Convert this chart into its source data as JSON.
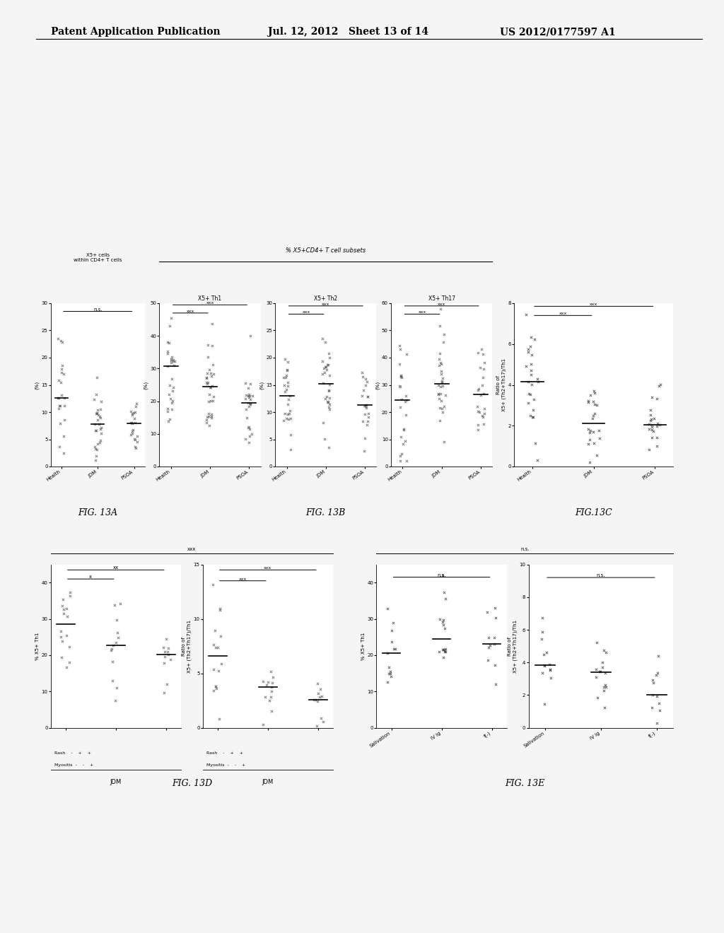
{
  "header_left": "Patent Application Publication",
  "header_mid": "Jul. 12, 2012   Sheet 13 of 14",
  "header_right": "US 2012/0177597 A1",
  "header_fontsize": 10,
  "bg_color": "#f0f0f0",
  "fig_label_13A": "FIG. 13A",
  "fig_label_13B": "FIG. 13B",
  "fig_label_13C": "FIG.13C",
  "fig_label_13D": "FIG. 13D",
  "fig_label_13E": "FIG. 13E",
  "top_row_title_left": "X5+ cells\nwithin CD4+ T cells",
  "top_row_title_mid": "% X5+CD4+ T cell subsets",
  "subtitle_Th1": "X5+ Th1",
  "subtitle_Th2": "X5+ Th2",
  "subtitle_Th17": "X5+ Th17",
  "x_labels_top": [
    "Health",
    "JDM",
    "PSOA"
  ],
  "x_labels_E": [
    "Salivation",
    "IV Ig",
    "f(-)"
  ],
  "bottom_label_D": "JDM",
  "sig_ns": "n.s.",
  "sig_xxx": "xxx",
  "sig_xx": "xx",
  "sig_x": "x"
}
